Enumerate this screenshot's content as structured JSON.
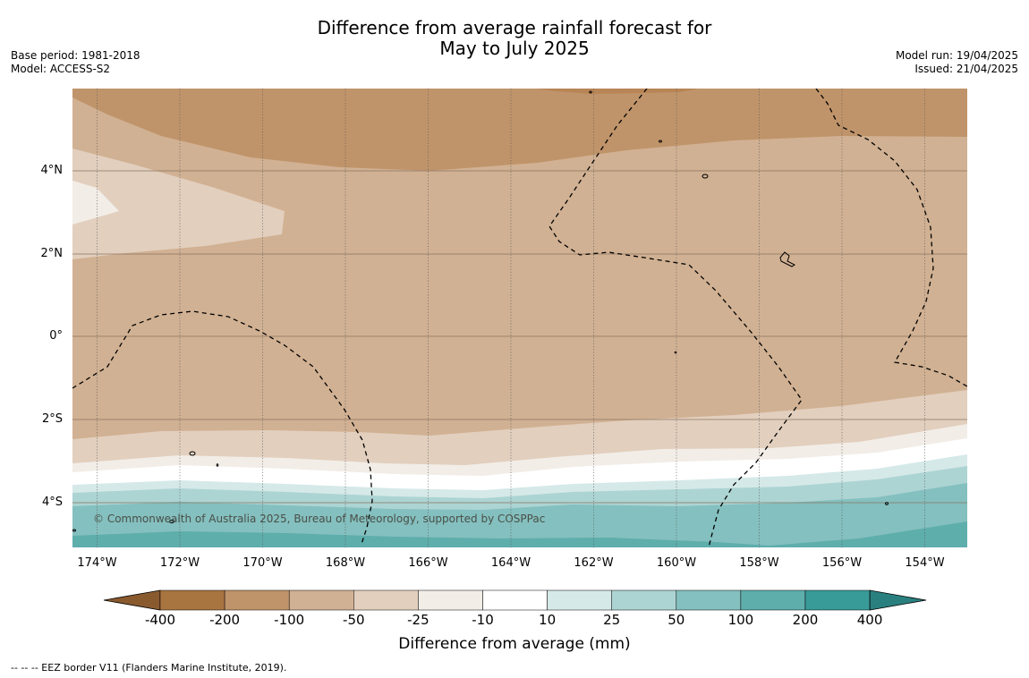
{
  "title_line1": "Difference from average rainfall forecast for",
  "title_line2": "May to July 2025",
  "base_period": "Base period: 1981-2018",
  "model": "Model: ACCESS-S2",
  "model_run": "Model run: 19/04/2025",
  "issued": "Issued: 21/04/2025",
  "copyright": "© Commonwealth of Australia 2025, Bureau of Meteorology, supported by COSPPac",
  "colorbar_title": "Difference from average (mm)",
  "footnote": "-- -- -- EEZ border V11 (Flanders Marine Institute, 2019).",
  "map": {
    "lat_labels": [
      "4°N",
      "2°N",
      "0°",
      "2°S",
      "4°S"
    ],
    "lon_labels": [
      "174°W",
      "172°W",
      "170°W",
      "168°W",
      "166°W",
      "164°W",
      "162°W",
      "160°W",
      "158°W",
      "156°W",
      "154°W"
    ],
    "colorbar": {
      "tick_labels": [
        "-400",
        "-200",
        "-100",
        "-50",
        "-25",
        "-10",
        "10",
        "25",
        "50",
        "100",
        "200",
        "400"
      ],
      "colors": [
        "#8a5a2f",
        "#a87440",
        "#c0946a",
        "#d1b193",
        "#e2cfbe",
        "#f2ede7",
        "#ffffff",
        "#d5e9e8",
        "#acd4d3",
        "#84c0bf",
        "#5eaeac",
        "#399b98",
        "#2a807e"
      ]
    },
    "region_colors": {
      "drier_200": "#c0946a",
      "drier_100": "#d1b193",
      "drier_50": "#e2cfbe",
      "drier_25": "#f2ede7",
      "near_normal": "#ffffff",
      "wetter_10": "#d5e9e8",
      "wetter_25": "#acd4d3",
      "wetter_50": "#84c0bf",
      "wetter_100": "#5eaeac",
      "driest_core": "#b88556"
    }
  }
}
